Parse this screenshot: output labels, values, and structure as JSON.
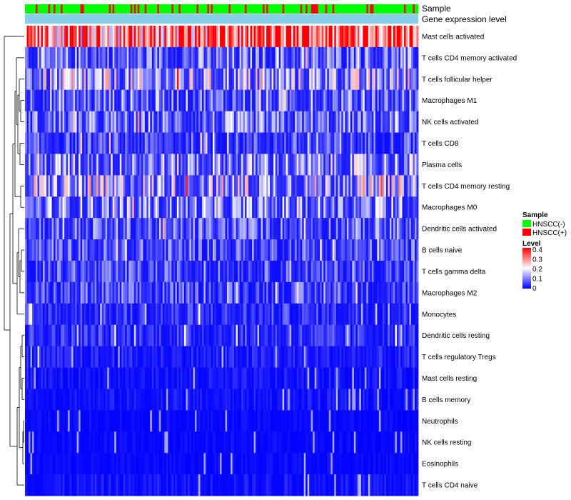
{
  "chart_data": {
    "type": "heatmap",
    "title": "",
    "annotation_tracks": [
      "Sample",
      "Gene expression level"
    ],
    "rows": [
      "Mast cells activated",
      "T cells CD4 memory activated",
      "T cells follicular helper",
      "Macrophages M1",
      "NK cells activated",
      "T cells CD8",
      "Plasma cells",
      "T cells CD4 memory resting",
      "Macrophages M0",
      "Dendritic cells activated",
      "B cells naive",
      "T cells gamma delta",
      "Macrophages M2",
      "Monocytes",
      "Dendritic cells resting",
      "T cells regulatory  Tregs",
      "Mast cells resting",
      "B cells memory",
      "Neutrophils",
      "NK cells resting",
      "Eosinophils",
      "T cells CD4 naive"
    ],
    "row_mean_level": [
      0.3,
      0.1,
      0.15,
      0.1,
      0.1,
      0.07,
      0.13,
      0.16,
      0.12,
      0.09,
      0.08,
      0.07,
      0.07,
      0.05,
      0.05,
      0.03,
      0.02,
      0.02,
      0.01,
      0.01,
      0.01,
      0.02
    ],
    "n_samples": 220,
    "sample_groups": [
      {
        "name": "HNSCC(-)",
        "color": "#00ff00"
      },
      {
        "name": "HNSCC(+)",
        "color": "#ff0000"
      }
    ],
    "color_scale": {
      "title": "Level",
      "min": 0,
      "max": 0.4,
      "low": "#0000ff",
      "mid": "#ffffff",
      "high": "#ff0000",
      "ticks": [
        "0.4",
        "0.3",
        "0.2",
        "0.1",
        "0"
      ]
    },
    "annotation_color": "#87ceeb"
  }
}
